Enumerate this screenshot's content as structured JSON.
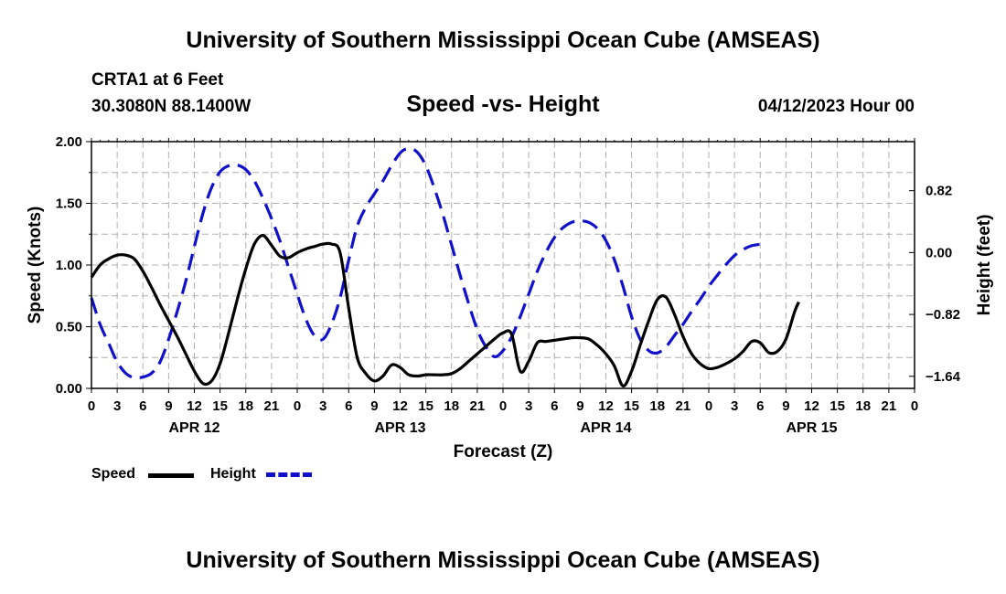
{
  "title": "University of Southern Mississippi Ocean Cube (AMSEAS)",
  "footer_title": "University of Southern Mississippi Ocean Cube (AMSEAS)",
  "station": "CRTA1 at 6 Feet",
  "coords": "30.3080N  88.1400W",
  "subtitle": "Speed -vs- Height",
  "datestamp": "04/12/2023 Hour 00",
  "legend": {
    "speed": "Speed",
    "height": "Height"
  },
  "colors": {
    "speed": "#000000",
    "height": "#1111cc",
    "grid": "#b0b0b0"
  },
  "chart_data": {
    "type": "line",
    "title": "Speed -vs- Height",
    "xlabel": "Forecast (Z)",
    "ylabel": "Speed (Knots)",
    "y2label": "Height (feet)",
    "xlim": [
      0,
      96
    ],
    "ylim": [
      0,
      2.0
    ],
    "y2lim": [
      -1.8,
      1.47
    ],
    "grid": true,
    "legend_position": "bottom-left",
    "x_tick_labels": [
      "0",
      "3",
      "6",
      "9",
      "12",
      "15",
      "18",
      "21",
      "0",
      "3",
      "6",
      "9",
      "12",
      "15",
      "18",
      "21",
      "0",
      "3",
      "6",
      "9",
      "12",
      "15",
      "18",
      "21",
      "0",
      "3",
      "6",
      "9",
      "12",
      "15",
      "18",
      "21",
      "0"
    ],
    "day_labels": [
      {
        "x": 12,
        "label": "APR 12"
      },
      {
        "x": 36,
        "label": "APR 13"
      },
      {
        "x": 60,
        "label": "APR 14"
      },
      {
        "x": 84,
        "label": "APR 15"
      }
    ],
    "y_ticks": [
      {
        "v": 0,
        "label": "0.00"
      },
      {
        "v": 0.5,
        "label": "0.50"
      },
      {
        "v": 1.0,
        "label": "1.00"
      },
      {
        "v": 1.5,
        "label": "1.50"
      },
      {
        "v": 2.0,
        "label": "2.00"
      }
    ],
    "y2_ticks": [
      {
        "v": 0.82,
        "label": "0.82"
      },
      {
        "v": 0.0,
        "label": "0.00"
      },
      {
        "v": -0.82,
        "label": "−0.82"
      },
      {
        "v": -1.64,
        "label": "−1.64"
      }
    ],
    "series": [
      {
        "name": "Speed",
        "axis": "left",
        "style": "solid",
        "points": [
          [
            0,
            0.9
          ],
          [
            1,
            1.0
          ],
          [
            2,
            1.05
          ],
          [
            3,
            1.08
          ],
          [
            4,
            1.08
          ],
          [
            5,
            1.05
          ],
          [
            6,
            0.95
          ],
          [
            7,
            0.82
          ],
          [
            8,
            0.68
          ],
          [
            9,
            0.55
          ],
          [
            10,
            0.42
          ],
          [
            11,
            0.28
          ],
          [
            12,
            0.14
          ],
          [
            13,
            0.04
          ],
          [
            14,
            0.06
          ],
          [
            15,
            0.2
          ],
          [
            16,
            0.45
          ],
          [
            17,
            0.72
          ],
          [
            18,
            0.97
          ],
          [
            19,
            1.17
          ],
          [
            20,
            1.24
          ],
          [
            21,
            1.16
          ],
          [
            22,
            1.07
          ],
          [
            23,
            1.06
          ],
          [
            24,
            1.1
          ],
          [
            25,
            1.13
          ],
          [
            26,
            1.15
          ],
          [
            27,
            1.17
          ],
          [
            28,
            1.17
          ],
          [
            29,
            1.1
          ],
          [
            30,
            0.65
          ],
          [
            31,
            0.25
          ],
          [
            32,
            0.12
          ],
          [
            33,
            0.06
          ],
          [
            34,
            0.1
          ],
          [
            35,
            0.19
          ],
          [
            36,
            0.17
          ],
          [
            37,
            0.11
          ],
          [
            38,
            0.1
          ],
          [
            39,
            0.11
          ],
          [
            40,
            0.11
          ],
          [
            41,
            0.11
          ],
          [
            42,
            0.12
          ],
          [
            43,
            0.16
          ],
          [
            44,
            0.22
          ],
          [
            45,
            0.28
          ],
          [
            46,
            0.34
          ],
          [
            47,
            0.4
          ],
          [
            48,
            0.45
          ],
          [
            49,
            0.44
          ],
          [
            50,
            0.14
          ],
          [
            51,
            0.22
          ],
          [
            52,
            0.37
          ],
          [
            53,
            0.38
          ],
          [
            54,
            0.39
          ],
          [
            55,
            0.4
          ],
          [
            56,
            0.41
          ],
          [
            57,
            0.41
          ],
          [
            58,
            0.4
          ],
          [
            59,
            0.35
          ],
          [
            60,
            0.28
          ],
          [
            61,
            0.18
          ],
          [
            62,
            0.02
          ],
          [
            63,
            0.14
          ],
          [
            64,
            0.35
          ],
          [
            65,
            0.55
          ],
          [
            66,
            0.72
          ],
          [
            67,
            0.74
          ],
          [
            68,
            0.6
          ],
          [
            69,
            0.42
          ],
          [
            70,
            0.28
          ],
          [
            71,
            0.2
          ],
          [
            72,
            0.16
          ],
          [
            73,
            0.17
          ],
          [
            74,
            0.2
          ],
          [
            75,
            0.24
          ],
          [
            76,
            0.3
          ],
          [
            77,
            0.38
          ],
          [
            78,
            0.37
          ],
          [
            79,
            0.29
          ],
          [
            80,
            0.3
          ],
          [
            81,
            0.4
          ],
          [
            82,
            0.62
          ],
          [
            82.5,
            0.7
          ]
        ]
      },
      {
        "name": "Height",
        "axis": "right",
        "style": "dashed",
        "points": [
          [
            0,
            -0.6
          ],
          [
            1,
            -0.95
          ],
          [
            2,
            -1.2
          ],
          [
            3,
            -1.45
          ],
          [
            4,
            -1.6
          ],
          [
            5,
            -1.66
          ],
          [
            6,
            -1.65
          ],
          [
            7,
            -1.6
          ],
          [
            8,
            -1.45
          ],
          [
            9,
            -1.15
          ],
          [
            10,
            -0.78
          ],
          [
            11,
            -0.38
          ],
          [
            12,
            0.08
          ],
          [
            13,
            0.52
          ],
          [
            14,
            0.86
          ],
          [
            15,
            1.07
          ],
          [
            16,
            1.15
          ],
          [
            17,
            1.16
          ],
          [
            18,
            1.1
          ],
          [
            19,
            0.95
          ],
          [
            20,
            0.72
          ],
          [
            21,
            0.45
          ],
          [
            22,
            0.15
          ],
          [
            23,
            -0.2
          ],
          [
            24,
            -0.55
          ],
          [
            25,
            -0.88
          ],
          [
            26,
            -1.1
          ],
          [
            27,
            -1.15
          ],
          [
            28,
            -0.95
          ],
          [
            29,
            -0.6
          ],
          [
            30,
            -0.1
          ],
          [
            31,
            0.35
          ],
          [
            32,
            0.6
          ],
          [
            33,
            0.78
          ],
          [
            34,
            0.95
          ],
          [
            35,
            1.15
          ],
          [
            36,
            1.32
          ],
          [
            37,
            1.38
          ],
          [
            38,
            1.33
          ],
          [
            39,
            1.15
          ],
          [
            40,
            0.85
          ],
          [
            41,
            0.5
          ],
          [
            42,
            0.1
          ],
          [
            43,
            -0.3
          ],
          [
            44,
            -0.68
          ],
          [
            45,
            -1.02
          ],
          [
            46,
            -1.25
          ],
          [
            47,
            -1.38
          ],
          [
            48,
            -1.3
          ],
          [
            49,
            -1.12
          ],
          [
            50,
            -0.85
          ],
          [
            51,
            -0.55
          ],
          [
            52,
            -0.25
          ],
          [
            53,
            0.0
          ],
          [
            54,
            0.2
          ],
          [
            55,
            0.33
          ],
          [
            56,
            0.4
          ],
          [
            57,
            0.42
          ],
          [
            58,
            0.4
          ],
          [
            59,
            0.32
          ],
          [
            60,
            0.16
          ],
          [
            61,
            -0.1
          ],
          [
            62,
            -0.45
          ],
          [
            63,
            -0.85
          ],
          [
            64,
            -1.15
          ],
          [
            65,
            -1.3
          ],
          [
            66,
            -1.33
          ],
          [
            67,
            -1.25
          ],
          [
            68,
            -1.1
          ],
          [
            69,
            -0.95
          ],
          [
            70,
            -0.78
          ],
          [
            71,
            -0.62
          ],
          [
            72,
            -0.45
          ],
          [
            73,
            -0.3
          ],
          [
            74,
            -0.16
          ],
          [
            75,
            -0.04
          ],
          [
            76,
            0.04
          ],
          [
            77,
            0.09
          ],
          [
            78,
            0.11
          ],
          [
            78.5,
            0.11
          ]
        ]
      }
    ]
  }
}
